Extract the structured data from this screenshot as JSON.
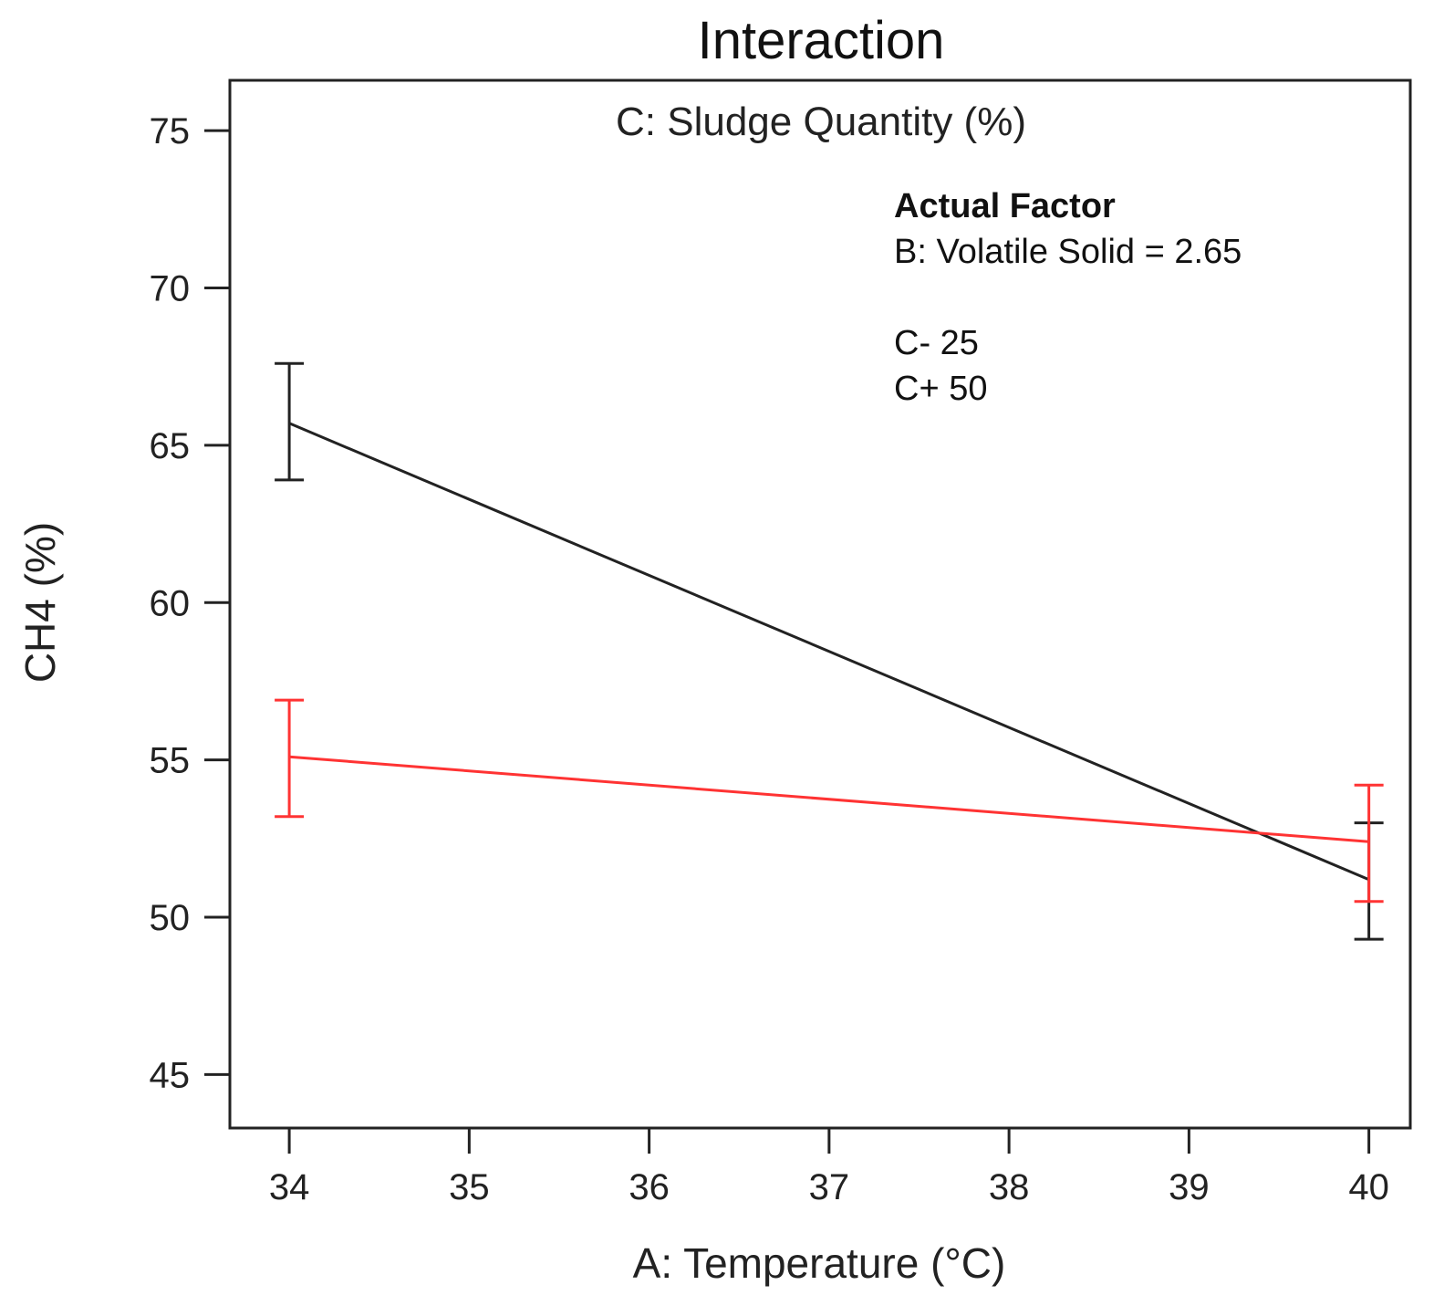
{
  "chart_data": {
    "type": "line",
    "title": "Interaction",
    "subtitle": "C: Sludge Quantity (%)",
    "xlabel": "A: Temperature (°C)",
    "ylabel": "CH4 (%)",
    "xlim": [
      33.67,
      40.23
    ],
    "ylim": [
      43.3,
      76.6
    ],
    "xticks": [
      34,
      35,
      36,
      37,
      38,
      39,
      40
    ],
    "yticks": [
      45,
      50,
      55,
      60,
      65,
      70,
      75
    ],
    "grid": false,
    "legend": {
      "heading": "Actual Factor",
      "factor_line": "B: Volatile Solid = 2.65",
      "placement": "top-right"
    },
    "series": [
      {
        "name": "C- 25",
        "color": "#222222",
        "x": [
          34,
          40
        ],
        "y": [
          65.7,
          51.2
        ],
        "error_low": [
          63.9,
          49.3
        ],
        "error_high": [
          67.6,
          53.0
        ]
      },
      {
        "name": "C+ 50",
        "color": "#ff3333",
        "x": [
          34,
          40
        ],
        "y": [
          55.1,
          52.4
        ],
        "error_low": [
          53.2,
          50.5
        ],
        "error_high": [
          56.9,
          54.2
        ]
      }
    ]
  }
}
